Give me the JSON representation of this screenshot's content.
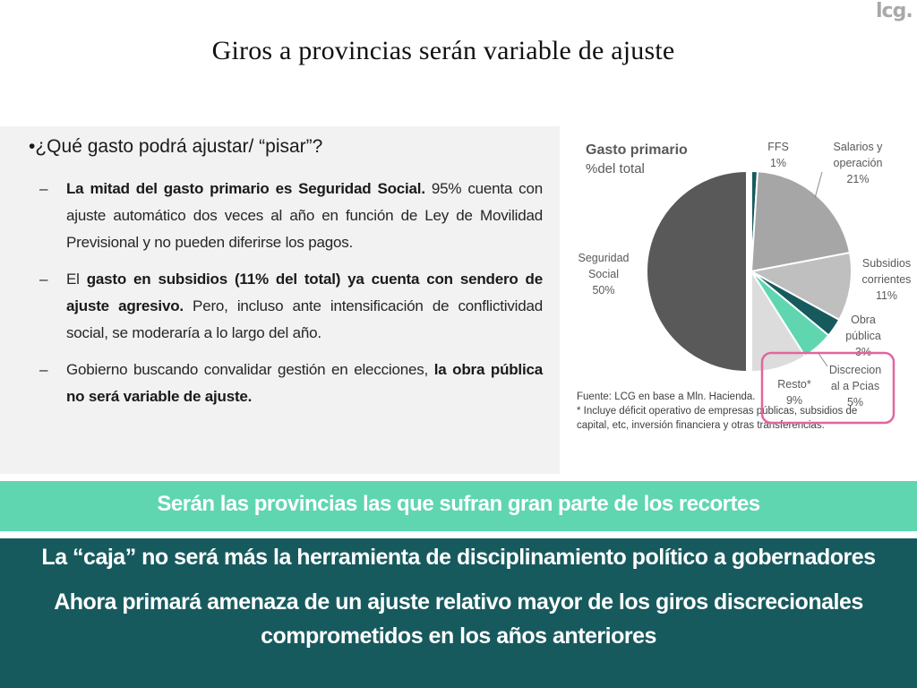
{
  "logo": {
    "text": "lcg",
    "dot": "."
  },
  "title": "Giros a provincias serán variable de ajuste",
  "bullets": {
    "main": "•¿Qué gasto podrá ajustar/ “pisar”?",
    "items": [
      {
        "dash": "–",
        "bold": "La mitad del gasto primario es Seguridad Social.",
        "rest": " 95% cuenta con ajuste automático dos veces al año en función de Ley de Movilidad Previsional y no pueden diferirse los pagos."
      },
      {
        "dash": "–",
        "pre": "El ",
        "bold": "gasto en subsidios (11% del total) ya cuenta con sendero de ajuste agresivo.",
        "rest": " Pero, incluso ante intensificación de conflictividad social, se moderaría a lo largo del año."
      },
      {
        "dash": "–",
        "pre": "Gobierno buscando convalidar gestión en elecciones, ",
        "bold": "la obra pública no será variable de ajuste.",
        "rest": ""
      }
    ]
  },
  "chart_data": {
    "type": "pie",
    "title": "Gasto primario",
    "subtitle": "%del total",
    "slices": [
      {
        "name": "FFS",
        "value": 1,
        "label_lines": [
          "FFS",
          "1%"
        ],
        "color": "#175a5e"
      },
      {
        "name": "Salarios y operación",
        "value": 21,
        "label_lines": [
          "Salarios y",
          "operación",
          "21%"
        ],
        "color": "#a6a6a6"
      },
      {
        "name": "Subsidios corrientes",
        "value": 11,
        "label_lines": [
          "Subsidios",
          "corrientes",
          "11%"
        ],
        "color": "#bfbfbf"
      },
      {
        "name": "Obra pública",
        "value": 3,
        "label_lines": [
          "Obra",
          "pública",
          "3%"
        ],
        "color": "#175a5e"
      },
      {
        "name": "Discrecional a Pcias",
        "value": 5,
        "label_lines": [
          "Discrecion",
          "al a Pcias",
          "5%"
        ],
        "color": "#5fd6b0"
      },
      {
        "name": "Resto*",
        "value": 9,
        "label_lines": [
          "Resto*",
          "9%"
        ],
        "color": "#dcdcdc"
      },
      {
        "name": "Seguridad Social",
        "value": 50,
        "label_lines": [
          "Seguridad",
          "Social",
          "50%"
        ],
        "color": "#595959"
      }
    ],
    "source_lines": [
      "Fuente: LCG en base a Mln. Hacienda.",
      "* Incluye déficit operativo de empresas públicas, subsidios de",
      "capital, etc, inversión financiera y otras transferencias."
    ],
    "highlight_color": "#e0679e"
  },
  "band_mint": "Serán las provincias las que sufran gran parte de los recortes",
  "band_teal": {
    "line1": "La “caja” no será más la herramienta de disciplinamiento político a gobernadores",
    "line2": "Ahora primará amenaza de un ajuste relativo mayor de los giros discrecionales comprometidos en los años anteriores"
  }
}
